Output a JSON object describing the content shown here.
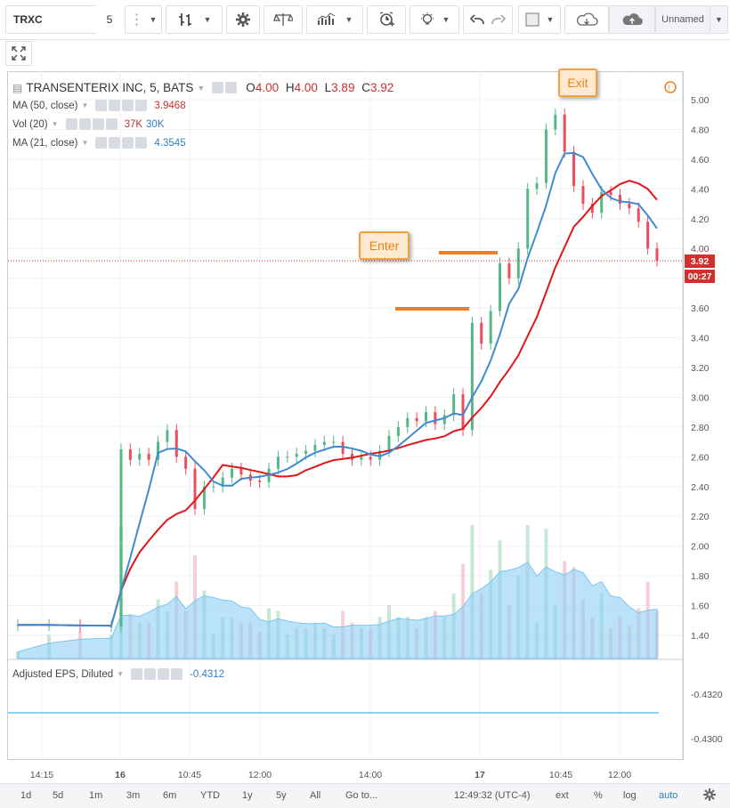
{
  "toolbar": {
    "symbol": "TRXC",
    "interval": "5",
    "unnamed_label": "Unnamed",
    "icons": [
      "bar-style-icon",
      "indicators-settings-icon",
      "compare-icon",
      "indicators-icon",
      "alert-icon",
      "idea-icon",
      "undo-icon",
      "redo-icon",
      "rectangle-icon",
      "cloud-save-icon",
      "cloud-load-icon"
    ]
  },
  "legend": {
    "title": "TRANSENTERIX INC, 5, BATS",
    "o_label": "O",
    "o_value": "4.00",
    "h_label": "H",
    "h_value": "4.00",
    "l_label": "L",
    "l_value": "3.89",
    "c_label": "C",
    "c_value": "3.92",
    "ma50_label": "MA (50, close)",
    "ma50_value": "3.9468",
    "vol_label": "Vol (20)",
    "vol_value1": "37K",
    "vol_value2": "30K",
    "ma21_label": "MA (21, close)",
    "ma21_value": "4.3545"
  },
  "eps": {
    "label": "Adjusted EPS, Diluted",
    "value": "-0.4312",
    "ticks": [
      "-0.4320",
      "-0.4300"
    ]
  },
  "annotations": {
    "enter": "Enter",
    "exit": "Exit"
  },
  "price_tag": {
    "price": "3.92",
    "countdown": "00:27"
  },
  "price_axis": [
    "5.00",
    "4.80",
    "4.60",
    "4.40",
    "4.20",
    "4.00",
    "3.80",
    "3.60",
    "3.40",
    "3.20",
    "3.00",
    "2.80",
    "2.60",
    "2.40",
    "2.20",
    "2.00",
    "1.80",
    "1.60",
    "1.40"
  ],
  "time_axis": [
    "14:15",
    "16",
    "10:45",
    "12:00",
    "14:00",
    "17",
    "10:45",
    "12:00"
  ],
  "bottombar": {
    "ranges": [
      "1d",
      "5d",
      "1m",
      "3m",
      "6m",
      "YTD",
      "1y",
      "5y",
      "All"
    ],
    "goto": "Go to...",
    "clock": "12:49:32 (UTC-4)",
    "ext": "ext",
    "percent": "%",
    "log": "log",
    "auto": "auto"
  },
  "colors": {
    "up": "#53b987",
    "down": "#eb4d5c",
    "ma50": "#e0161b",
    "ma21": "#3f8bd0",
    "vol_ma": "#8ecff5",
    "accent": "#f07d1a"
  },
  "chart_data": {
    "type": "candlestick",
    "series_ma50_last": 3.9468,
    "series_ma21_last": 4.3545,
    "ylim": [
      1.3,
      5.05
    ],
    "candles_close": [
      1.47,
      1.47,
      1.46,
      1.46,
      2.65,
      2.58,
      2.62,
      2.58,
      2.7,
      2.78,
      2.6,
      2.52,
      2.25,
      2.4,
      2.4,
      2.46,
      2.52,
      2.48,
      2.44,
      2.43,
      2.52,
      2.6,
      2.6,
      2.62,
      2.64,
      2.68,
      2.7,
      2.7,
      2.62,
      2.58,
      2.6,
      2.58,
      2.64,
      2.74,
      2.8,
      2.86,
      2.84,
      2.9,
      2.82,
      2.88,
      3.02,
      2.78,
      3.5,
      3.36,
      3.58,
      3.9,
      3.8,
      4.0,
      4.4,
      4.44,
      4.8,
      4.9,
      4.65,
      4.42,
      4.3,
      4.24,
      4.38,
      4.36,
      4.3,
      4.27,
      4.18,
      4.0,
      3.92
    ]
  }
}
